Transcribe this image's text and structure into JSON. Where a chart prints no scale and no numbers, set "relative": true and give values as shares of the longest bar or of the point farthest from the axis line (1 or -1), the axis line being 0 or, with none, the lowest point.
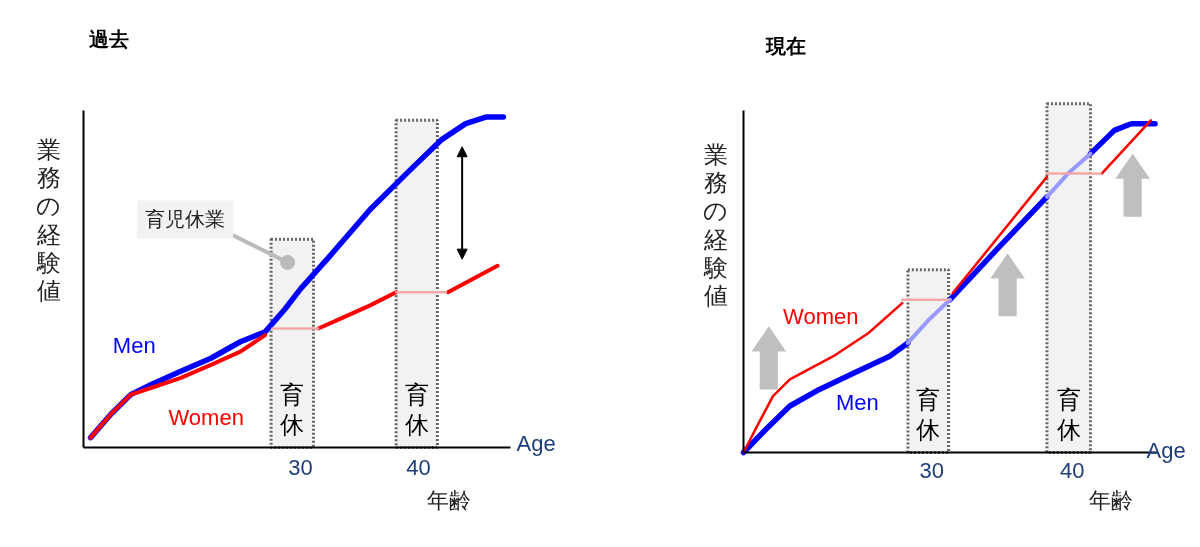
{
  "chart_data": [
    {
      "type": "line",
      "title": "過去",
      "xlabel": "Age",
      "ylabel": "業務の経験値",
      "relative": true,
      "xlim": [
        11.6,
        47.8
      ],
      "xticks": [
        30,
        40
      ],
      "tick_labels": "x",
      "grid": false,
      "annotations": [
        {
          "text": "育児休業",
          "x": 28.9,
          "y": 0.56
        },
        "年齢"
      ],
      "bands": [
        {
          "axis": "x",
          "from": 27.5,
          "to": 31.1,
          "label": "育休",
          "color": "#f2f2f2"
        },
        {
          "axis": "x",
          "from": 38.1,
          "to": 41.6,
          "label": "育休",
          "color": "#f2f2f2"
        }
      ],
      "series": [
        {
          "name": "Men",
          "color": "#0000ff",
          "x": [
            12.2,
            13.9,
            15.6,
            17.3,
            19.8,
            22.4,
            24.9,
            27.0,
            28.7,
            30.0,
            32.5,
            35.9,
            39.3,
            41.9,
            44.0,
            45.7,
            47.2
          ],
          "values": [
            0.03,
            0.1,
            0.16,
            0.19,
            0.23,
            0.27,
            0.32,
            0.35,
            0.42,
            0.48,
            0.58,
            0.72,
            0.84,
            0.93,
            0.98,
            1.0,
            1.0
          ]
        },
        {
          "name": "Women",
          "color": "#ff0000",
          "x": [
            12.2,
            13.9,
            15.6,
            17.3,
            19.8,
            22.4,
            24.9,
            27.0,
            29.0,
            31.5,
            33.4,
            35.9,
            38.1,
            40.0,
            42.5,
            46.7
          ],
          "values": [
            0.03,
            0.1,
            0.16,
            0.18,
            0.21,
            0.25,
            0.29,
            0.34,
            null,
            0.36,
            0.39,
            0.43,
            0.47,
            null,
            0.47,
            0.55
          ]
        },
        {
          "color": "#f4a6a6",
          "line_style": "dotted",
          "x": [
            27.6,
            31.5,
            34.0,
            38.1,
            42.5
          ],
          "values": [
            0.36,
            0.36,
            null,
            0.47,
            0.47
          ]
        }
      ]
    },
    {
      "type": "line",
      "title": "現在",
      "xlabel": "Age",
      "ylabel": "業務の経験値",
      "relative": true,
      "xlim": [
        16.6,
        46.0
      ],
      "xticks": [
        30,
        40
      ],
      "tick_labels": "x",
      "grid": false,
      "annotations": [
        "年齢"
      ],
      "bands": [
        {
          "axis": "x",
          "from": 28.3,
          "to": 31.2,
          "label": "育休",
          "color": "#f2f2f2"
        },
        {
          "axis": "x",
          "from": 38.2,
          "to": 41.3,
          "label": "育休",
          "color": "#f2f2f2"
        }
      ],
      "series": [
        {
          "name": "Men",
          "color": "#0000ff",
          "x": [
            16.6,
            18.2,
            19.9,
            22.0,
            24.5,
            27.0,
            28.3,
            29.8,
            31.3,
            34.6,
            38.2,
            39.7,
            41.3,
            43.0,
            44.2,
            45.9
          ],
          "values": [
            0.0,
            0.07,
            0.14,
            0.19,
            0.24,
            0.29,
            0.33,
            null,
            0.46,
            0.61,
            0.77,
            null,
            0.9,
            0.97,
            0.99,
            0.99
          ]
        },
        {
          "color": "#9999ff",
          "x": [
            28.3,
            29.8,
            31.3,
            35.0,
            38.2,
            39.7,
            41.3
          ],
          "values": [
            0.33,
            0.4,
            0.46,
            null,
            0.77,
            0.84,
            0.9
          ]
        },
        {
          "name": "Women",
          "color": "#ff0000",
          "x": [
            16.6,
            17.7,
            18.7,
            19.9,
            23.0,
            25.5,
            27.9,
            29.6,
            31.5,
            38.2,
            40.0,
            42.1,
            45.6
          ],
          "values": [
            0.0,
            0.09,
            0.17,
            0.22,
            0.29,
            0.36,
            0.45,
            null,
            0.48,
            0.83,
            null,
            0.84,
            1.0
          ]
        },
        {
          "color": "#f4a6a6",
          "line_style": "dotted",
          "x": [
            27.9,
            31.3,
            35.0,
            38.2,
            42.1
          ],
          "values": [
            0.46,
            0.46,
            null,
            0.84,
            0.84
          ]
        }
      ]
    }
  ]
}
